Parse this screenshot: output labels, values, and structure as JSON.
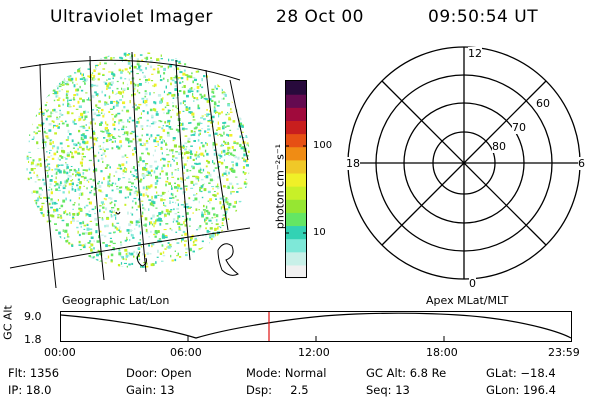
{
  "header": {
    "instrument": "Ultraviolet Imager",
    "date": "28 Oct 00",
    "time": "09:50:54 UT"
  },
  "colorbar": {
    "unit_label": "photon cm⁻²s⁻¹",
    "ticks": [
      "100",
      "10"
    ],
    "colors": [
      "#f0f0f0",
      "#c8f0e8",
      "#7ee8d8",
      "#32d2b4",
      "#64e664",
      "#96e632",
      "#c8f028",
      "#f0f028",
      "#f0c828",
      "#f08c14",
      "#e65014",
      "#c81e1e",
      "#a00a3c",
      "#640a50",
      "#280a3c"
    ]
  },
  "left_panel": {
    "caption": "Geographic Lat/Lon"
  },
  "polar_plot": {
    "caption": "Apex MLat/MLT",
    "mlt_labels": {
      "top": "12",
      "left": "18",
      "right": "6",
      "bottom": "0"
    },
    "lat_labels": [
      "60",
      "70",
      "80"
    ]
  },
  "altitude_plot": {
    "ylabel": "GC Alt",
    "y_ticks": [
      "9.0",
      "1.8"
    ],
    "x_ticks": [
      "00:00",
      "06:00",
      "12:00",
      "18:00",
      "23:59"
    ],
    "current_marker_color": "#e01010"
  },
  "status": {
    "flt": "Flt: 1356",
    "ip": "IP: 18.0",
    "door": "Door: Open",
    "gain": "Gain: 13",
    "mode": "Mode: Normal",
    "dsp": "Dsp:     2.5",
    "gcalt": "GC Alt: 6.8 Re",
    "seq": "Seq: 13",
    "glat": "GLat: −18.4",
    "glon": "GLon: 196.4"
  }
}
